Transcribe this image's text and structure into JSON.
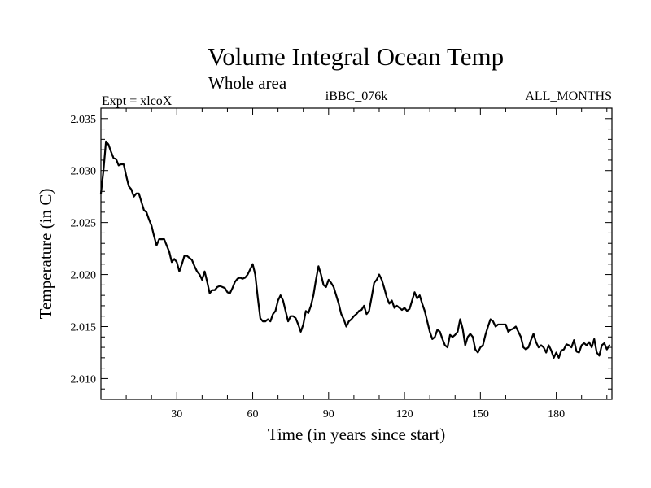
{
  "chart_data": {
    "type": "line",
    "title": "Volume Integral Ocean Temp",
    "subtitle": "Whole area",
    "left_label": "Expt = xlcoX",
    "center_label": "iBBC_076k",
    "right_label": "ALL_MONTHS",
    "xlabel": "Time (in years since start)",
    "ylabel": "Temperature (in C)",
    "xlim": [
      0,
      202
    ],
    "ylim": [
      2.008,
      2.036
    ],
    "x_ticks": [
      30,
      60,
      90,
      120,
      150,
      180
    ],
    "x_tick_labels": [
      "30",
      "60",
      "90",
      "120",
      "150",
      "180"
    ],
    "y_ticks": [
      2.01,
      2.015,
      2.02,
      2.025,
      2.03,
      2.035
    ],
    "y_tick_labels": [
      "2.010",
      "2.015",
      "2.020",
      "2.025",
      "2.030",
      "2.035"
    ],
    "line_color": "#000000",
    "series": [
      {
        "name": "Volume Integral Ocean Temp",
        "points": [
          [
            0,
            2.0278
          ],
          [
            1,
            2.03
          ],
          [
            2,
            2.0328
          ],
          [
            3,
            2.0325
          ],
          [
            4,
            2.0318
          ],
          [
            5,
            2.0312
          ],
          [
            6,
            2.0311
          ],
          [
            7,
            2.0305
          ],
          [
            8,
            2.0306
          ],
          [
            9,
            2.0306
          ],
          [
            10,
            2.0295
          ],
          [
            11,
            2.0285
          ],
          [
            12,
            2.0282
          ],
          [
            13,
            2.0275
          ],
          [
            14,
            2.0278
          ],
          [
            15,
            2.0278
          ],
          [
            16,
            2.027
          ],
          [
            17,
            2.0262
          ],
          [
            18,
            2.026
          ],
          [
            19,
            2.0253
          ],
          [
            20,
            2.0247
          ],
          [
            21,
            2.0237
          ],
          [
            22,
            2.0228
          ],
          [
            23,
            2.0234
          ],
          [
            24,
            2.0234
          ],
          [
            25,
            2.0234
          ],
          [
            26,
            2.0228
          ],
          [
            27,
            2.0222
          ],
          [
            28,
            2.0212
          ],
          [
            29,
            2.0215
          ],
          [
            30,
            2.0212
          ],
          [
            31,
            2.0203
          ],
          [
            32,
            2.021
          ],
          [
            33,
            2.0218
          ],
          [
            34,
            2.0218
          ],
          [
            35,
            2.0216
          ],
          [
            36,
            2.0214
          ],
          [
            37,
            2.0208
          ],
          [
            38,
            2.0203
          ],
          [
            39,
            2.02
          ],
          [
            40,
            2.0195
          ],
          [
            41,
            2.0203
          ],
          [
            42,
            2.0193
          ],
          [
            43,
            2.0182
          ],
          [
            44,
            2.0185
          ],
          [
            45,
            2.0185
          ],
          [
            46,
            2.0188
          ],
          [
            47,
            2.0189
          ],
          [
            48,
            2.0188
          ],
          [
            49,
            2.0187
          ],
          [
            50,
            2.0183
          ],
          [
            51,
            2.0182
          ],
          [
            52,
            2.0187
          ],
          [
            53,
            2.0193
          ],
          [
            54,
            2.0196
          ],
          [
            55,
            2.0197
          ],
          [
            56,
            2.0196
          ],
          [
            57,
            2.0197
          ],
          [
            58,
            2.02
          ],
          [
            59,
            2.0205
          ],
          [
            60,
            2.021
          ],
          [
            61,
            2.02
          ],
          [
            62,
            2.0178
          ],
          [
            63,
            2.0158
          ],
          [
            64,
            2.0155
          ],
          [
            65,
            2.0155
          ],
          [
            66,
            2.0157
          ],
          [
            67,
            2.0155
          ],
          [
            68,
            2.0162
          ],
          [
            69,
            2.0165
          ],
          [
            70,
            2.0175
          ],
          [
            71,
            2.018
          ],
          [
            72,
            2.0175
          ],
          [
            73,
            2.0165
          ],
          [
            74,
            2.0155
          ],
          [
            75,
            2.016
          ],
          [
            76,
            2.016
          ],
          [
            77,
            2.0158
          ],
          [
            78,
            2.0152
          ],
          [
            79,
            2.0145
          ],
          [
            80,
            2.0152
          ],
          [
            81,
            2.0165
          ],
          [
            82,
            2.0163
          ],
          [
            83,
            2.017
          ],
          [
            84,
            2.018
          ],
          [
            85,
            2.0195
          ],
          [
            86,
            2.0208
          ],
          [
            87,
            2.02
          ],
          [
            88,
            2.019
          ],
          [
            89,
            2.0188
          ],
          [
            90,
            2.0195
          ],
          [
            91,
            2.0192
          ],
          [
            92,
            2.0188
          ],
          [
            93,
            2.018
          ],
          [
            94,
            2.0172
          ],
          [
            95,
            2.0162
          ],
          [
            96,
            2.0157
          ],
          [
            97,
            2.015
          ],
          [
            98,
            2.0155
          ],
          [
            99,
            2.0157
          ],
          [
            100,
            2.016
          ],
          [
            101,
            2.0162
          ],
          [
            102,
            2.0165
          ],
          [
            103,
            2.0166
          ],
          [
            104,
            2.017
          ],
          [
            105,
            2.0162
          ],
          [
            106,
            2.0165
          ],
          [
            107,
            2.0178
          ],
          [
            108,
            2.0192
          ],
          [
            109,
            2.0195
          ],
          [
            110,
            2.02
          ],
          [
            111,
            2.0195
          ],
          [
            112,
            2.0187
          ],
          [
            113,
            2.0178
          ],
          [
            114,
            2.0172
          ],
          [
            115,
            2.0175
          ],
          [
            116,
            2.0168
          ],
          [
            117,
            2.017
          ],
          [
            118,
            2.0168
          ],
          [
            119,
            2.0166
          ],
          [
            120,
            2.0168
          ],
          [
            121,
            2.0165
          ],
          [
            122,
            2.0167
          ],
          [
            123,
            2.0175
          ],
          [
            124,
            2.0183
          ],
          [
            125,
            2.0177
          ],
          [
            126,
            2.018
          ],
          [
            127,
            2.0172
          ],
          [
            128,
            2.0165
          ],
          [
            129,
            2.0155
          ],
          [
            130,
            2.0145
          ],
          [
            131,
            2.0138
          ],
          [
            132,
            2.014
          ],
          [
            133,
            2.0147
          ],
          [
            134,
            2.0145
          ],
          [
            135,
            2.0138
          ],
          [
            136,
            2.0132
          ],
          [
            137,
            2.013
          ],
          [
            138,
            2.0142
          ],
          [
            139,
            2.014
          ],
          [
            140,
            2.0142
          ],
          [
            141,
            2.0145
          ],
          [
            142,
            2.0157
          ],
          [
            143,
            2.0148
          ],
          [
            144,
            2.0132
          ],
          [
            145,
            2.014
          ],
          [
            146,
            2.0143
          ],
          [
            147,
            2.014
          ],
          [
            148,
            2.0128
          ],
          [
            149,
            2.0125
          ],
          [
            150,
            2.013
          ],
          [
            151,
            2.0132
          ],
          [
            152,
            2.0142
          ],
          [
            153,
            2.015
          ],
          [
            154,
            2.0157
          ],
          [
            155,
            2.0155
          ],
          [
            156,
            2.015
          ],
          [
            157,
            2.0152
          ],
          [
            158,
            2.0152
          ],
          [
            159,
            2.0152
          ],
          [
            160,
            2.0152
          ],
          [
            161,
            2.0145
          ],
          [
            162,
            2.0147
          ],
          [
            163,
            2.0148
          ],
          [
            164,
            2.015
          ],
          [
            165,
            2.0145
          ],
          [
            166,
            2.014
          ],
          [
            167,
            2.013
          ],
          [
            168,
            2.0128
          ],
          [
            169,
            2.013
          ],
          [
            170,
            2.0137
          ],
          [
            171,
            2.0143
          ],
          [
            172,
            2.0135
          ],
          [
            173,
            2.013
          ],
          [
            174,
            2.0132
          ],
          [
            175,
            2.013
          ],
          [
            176,
            2.0125
          ],
          [
            177,
            2.0132
          ],
          [
            178,
            2.0127
          ],
          [
            179,
            2.012
          ],
          [
            180,
            2.0125
          ],
          [
            181,
            2.012
          ],
          [
            182,
            2.0127
          ],
          [
            183,
            2.0128
          ],
          [
            184,
            2.0133
          ],
          [
            185,
            2.0132
          ],
          [
            186,
            2.013
          ],
          [
            187,
            2.0137
          ],
          [
            188,
            2.0126
          ],
          [
            189,
            2.0125
          ],
          [
            190,
            2.0132
          ],
          [
            191,
            2.0134
          ],
          [
            192,
            2.0132
          ],
          [
            193,
            2.0135
          ],
          [
            194,
            2.013
          ],
          [
            195,
            2.0138
          ],
          [
            196,
            2.0125
          ],
          [
            197,
            2.0122
          ],
          [
            198,
            2.0132
          ],
          [
            199,
            2.0134
          ],
          [
            200,
            2.0128
          ],
          [
            201,
            2.0132
          ]
        ]
      }
    ]
  }
}
